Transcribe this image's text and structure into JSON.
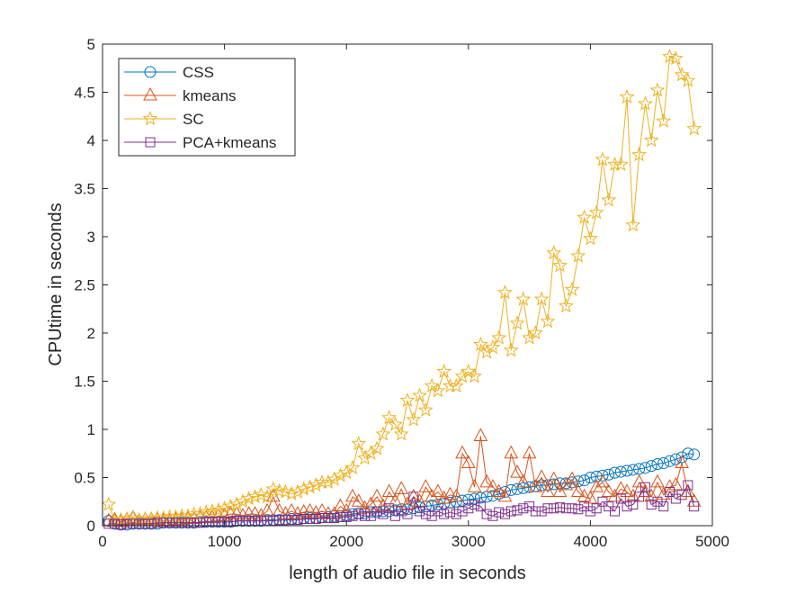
{
  "chart_data": {
    "type": "line",
    "title": "",
    "xlabel": "length of audio file in seconds",
    "ylabel": "CPUtime in seconds",
    "xlim": [
      0,
      5000
    ],
    "ylim": [
      0,
      5
    ],
    "xticks": [
      0,
      1000,
      2000,
      3000,
      4000,
      5000
    ],
    "yticks": [
      0,
      0.5,
      1,
      1.5,
      2,
      2.5,
      3,
      3.5,
      4,
      4.5,
      5
    ],
    "xtick_labels": [
      "0",
      "1000",
      "2000",
      "3000",
      "4000",
      "5000"
    ],
    "ytick_labels": [
      "0",
      "0.5",
      "1",
      "1.5",
      "2",
      "2.5",
      "3",
      "3.5",
      "4",
      "4.5",
      "5"
    ],
    "grid": false,
    "legend_position": "top-left",
    "x": [
      50,
      100,
      150,
      200,
      250,
      300,
      350,
      400,
      450,
      500,
      550,
      600,
      650,
      700,
      750,
      800,
      850,
      900,
      950,
      1000,
      1050,
      1100,
      1150,
      1200,
      1250,
      1300,
      1350,
      1400,
      1450,
      1500,
      1550,
      1600,
      1650,
      1700,
      1750,
      1800,
      1850,
      1900,
      1950,
      2000,
      2050,
      2100,
      2150,
      2200,
      2250,
      2300,
      2350,
      2400,
      2450,
      2500,
      2550,
      2600,
      2650,
      2700,
      2750,
      2800,
      2850,
      2900,
      2950,
      3000,
      3050,
      3100,
      3150,
      3200,
      3250,
      3300,
      3350,
      3400,
      3450,
      3500,
      3550,
      3600,
      3650,
      3700,
      3750,
      3800,
      3850,
      3900,
      3950,
      4000,
      4050,
      4100,
      4150,
      4200,
      4250,
      4300,
      4350,
      4400,
      4450,
      4500,
      4550,
      4600,
      4650,
      4700,
      4750,
      4800,
      4850
    ],
    "series": [
      {
        "name": "CSS",
        "color": "#0072bd",
        "marker": "circle",
        "values": [
          0.05,
          0.02,
          0.01,
          0.01,
          0.02,
          0.02,
          0.02,
          0.02,
          0.02,
          0.03,
          0.03,
          0.03,
          0.03,
          0.03,
          0.03,
          0.04,
          0.04,
          0.04,
          0.04,
          0.04,
          0.04,
          0.05,
          0.05,
          0.05,
          0.05,
          0.05,
          0.06,
          0.06,
          0.06,
          0.06,
          0.07,
          0.07,
          0.08,
          0.08,
          0.08,
          0.09,
          0.09,
          0.1,
          0.1,
          0.11,
          0.12,
          0.13,
          0.13,
          0.14,
          0.14,
          0.15,
          0.15,
          0.16,
          0.17,
          0.17,
          0.18,
          0.19,
          0.2,
          0.21,
          0.22,
          0.23,
          0.24,
          0.25,
          0.26,
          0.27,
          0.28,
          0.29,
          0.3,
          0.31,
          0.33,
          0.35,
          0.37,
          0.38,
          0.39,
          0.4,
          0.41,
          0.42,
          0.42,
          0.43,
          0.44,
          0.44,
          0.45,
          0.46,
          0.47,
          0.5,
          0.51,
          0.52,
          0.53,
          0.55,
          0.56,
          0.57,
          0.58,
          0.59,
          0.6,
          0.62,
          0.64,
          0.65,
          0.67,
          0.69,
          0.71,
          0.75,
          0.74
        ]
      },
      {
        "name": "kmeans",
        "color": "#d95319",
        "marker": "triangle",
        "values": [
          0.05,
          0.06,
          0.04,
          0.06,
          0.08,
          0.05,
          0.06,
          0.06,
          0.06,
          0.05,
          0.05,
          0.06,
          0.06,
          0.07,
          0.07,
          0.08,
          0.08,
          0.08,
          0.1,
          0.1,
          0.12,
          0.12,
          0.1,
          0.12,
          0.12,
          0.1,
          0.15,
          0.3,
          0.15,
          0.12,
          0.15,
          0.12,
          0.14,
          0.15,
          0.13,
          0.15,
          0.12,
          0.12,
          0.2,
          0.15,
          0.3,
          0.25,
          0.18,
          0.22,
          0.3,
          0.2,
          0.35,
          0.25,
          0.38,
          0.22,
          0.3,
          0.25,
          0.4,
          0.3,
          0.35,
          0.28,
          0.32,
          0.3,
          0.75,
          0.65,
          0.4,
          0.93,
          0.45,
          0.4,
          0.35,
          0.3,
          0.75,
          0.55,
          0.45,
          0.75,
          0.4,
          0.5,
          0.35,
          0.48,
          0.35,
          0.42,
          0.48,
          0.35,
          0.3,
          0.28,
          0.4,
          0.45,
          0.35,
          0.3,
          0.38,
          0.35,
          0.3,
          0.45,
          0.35,
          0.3,
          0.45,
          0.32,
          0.4,
          0.42,
          0.65,
          0.35,
          0.25
        ]
      },
      {
        "name": "SC",
        "color": "#edb120",
        "marker": "star",
        "values": [
          0.22,
          0.05,
          0.06,
          0.07,
          0.08,
          0.06,
          0.07,
          0.07,
          0.08,
          0.08,
          0.09,
          0.09,
          0.1,
          0.1,
          0.12,
          0.12,
          0.14,
          0.15,
          0.16,
          0.18,
          0.2,
          0.22,
          0.25,
          0.28,
          0.3,
          0.32,
          0.3,
          0.38,
          0.36,
          0.35,
          0.33,
          0.35,
          0.38,
          0.4,
          0.42,
          0.45,
          0.45,
          0.48,
          0.52,
          0.55,
          0.6,
          0.85,
          0.7,
          0.75,
          0.8,
          0.95,
          1.12,
          1.05,
          0.95,
          1.3,
          1.1,
          1.35,
          1.2,
          1.45,
          1.4,
          1.6,
          1.45,
          1.45,
          1.55,
          1.6,
          1.55,
          1.88,
          1.8,
          1.85,
          1.95,
          2.42,
          1.82,
          2.1,
          2.35,
          1.95,
          2.0,
          2.35,
          2.12,
          2.83,
          2.7,
          2.28,
          2.45,
          2.8,
          3.2,
          2.98,
          3.25,
          3.8,
          3.38,
          3.75,
          3.75,
          4.45,
          3.12,
          3.85,
          4.38,
          4.0,
          4.52,
          4.2,
          4.87,
          4.85,
          4.68,
          4.62,
          4.12
        ]
      },
      {
        "name": "PCA+kmeans",
        "color": "#7e2f8e",
        "marker": "square",
        "values": [
          0.02,
          0.02,
          0.01,
          0.02,
          0.02,
          0.02,
          0.02,
          0.02,
          0.03,
          0.03,
          0.03,
          0.03,
          0.03,
          0.03,
          0.03,
          0.03,
          0.04,
          0.04,
          0.04,
          0.04,
          0.04,
          0.05,
          0.05,
          0.05,
          0.05,
          0.05,
          0.05,
          0.05,
          0.06,
          0.06,
          0.06,
          0.06,
          0.07,
          0.07,
          0.07,
          0.08,
          0.08,
          0.08,
          0.09,
          0.09,
          0.1,
          0.12,
          0.1,
          0.1,
          0.15,
          0.12,
          0.18,
          0.1,
          0.15,
          0.12,
          0.3,
          0.15,
          0.12,
          0.1,
          0.15,
          0.12,
          0.14,
          0.12,
          0.15,
          0.18,
          0.22,
          0.2,
          0.12,
          0.1,
          0.14,
          0.12,
          0.15,
          0.16,
          0.18,
          0.2,
          0.15,
          0.15,
          0.18,
          0.18,
          0.19,
          0.18,
          0.18,
          0.17,
          0.2,
          0.15,
          0.18,
          0.25,
          0.2,
          0.15,
          0.28,
          0.2,
          0.22,
          0.3,
          0.4,
          0.22,
          0.25,
          0.2,
          0.35,
          0.28,
          0.32,
          0.42,
          0.2
        ]
      }
    ]
  }
}
